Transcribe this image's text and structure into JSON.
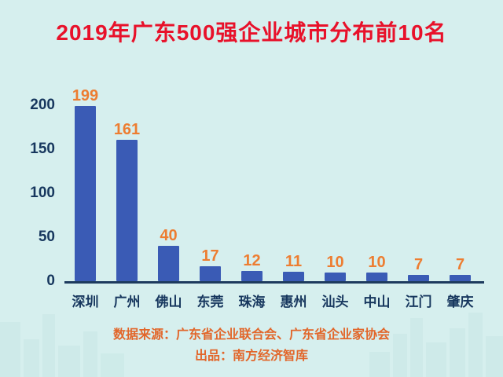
{
  "chart_data": {
    "type": "bar",
    "title": "2019年广东500强企业城市分布前10名",
    "categories": [
      "深圳",
      "广州",
      "佛山",
      "东莞",
      "珠海",
      "惠州",
      "汕头",
      "中山",
      "江门",
      "肇庆"
    ],
    "values": [
      199,
      161,
      40,
      17,
      12,
      11,
      10,
      10,
      7,
      7
    ],
    "xlabel": "",
    "ylabel": "",
    "ylim": [
      0,
      200
    ],
    "yticks": [
      0,
      50,
      100,
      150,
      200
    ],
    "grid": false,
    "legend": false,
    "value_labels_shown": true
  },
  "footer": {
    "source": "数据来源：广东省企业联合会、广东省企业家协会",
    "producer": "出品：南方经济智库"
  },
  "colors": {
    "background": "#d6efee",
    "title_text": "#e8112a",
    "bar_fill": "#3a5bb5",
    "value_label_text": "#ed7d31",
    "axis_text": "#17375e",
    "baseline": "#1d3b5e",
    "footer_text": "#e2662a",
    "skyline_decoration": "#c9e7e6"
  }
}
